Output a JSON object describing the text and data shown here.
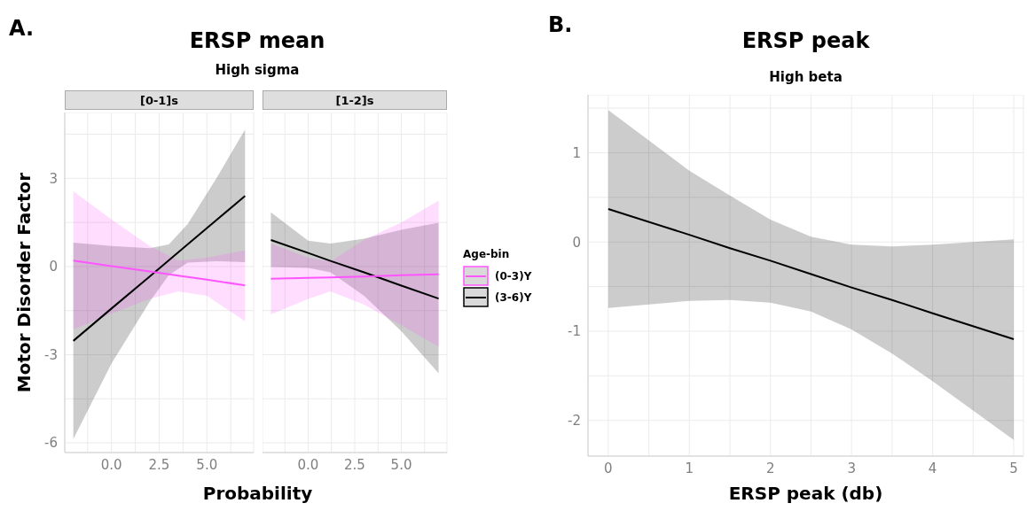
{
  "chart_data": [
    {
      "type": "line",
      "title": "[0-1]s",
      "legend": "right",
      "legend_title": "Age-bin",
      "annotations": [
        "A.",
        "ERSP mean",
        "High sigma"
      ],
      "xlabel": "Probability",
      "ylabel": "Motor Disorder Factor",
      "xlim": [
        -2.45,
        7.45
      ],
      "ylim": [
        -6.33,
        5.24
      ],
      "xticks": [
        {
          "value": -1.25,
          "label": null
        },
        {
          "value": 0,
          "label": "0.0"
        },
        {
          "value": 1.25,
          "label": null
        },
        {
          "value": 2.5,
          "label": "2.5"
        },
        {
          "value": 3.75,
          "label": null
        },
        {
          "value": 5,
          "label": "5.0"
        },
        {
          "value": 6.25,
          "label": null
        }
      ],
      "yticks": [
        -6,
        {
          "value": -4.5,
          "label": null
        },
        -3,
        {
          "value": -1.5,
          "label": null
        },
        0,
        {
          "value": 1.5,
          "label": null
        },
        3,
        {
          "value": 4.5,
          "label": null
        }
      ],
      "grid": true,
      "series": [
        {
          "name": "(3-6)Y",
          "color": "#000000",
          "x": [
            -2,
            0,
            2,
            3,
            4,
            5.5,
            7
          ],
          "values": [
            -2.53,
            -1.43,
            -0.34,
            0.21,
            0.76,
            1.58,
            2.4
          ],
          "lower": [
            -5.87,
            -3.3,
            -1.2,
            -0.3,
            0.13,
            0.18,
            0.15
          ],
          "upper": [
            0.81,
            0.7,
            0.62,
            0.75,
            1.45,
            3.0,
            4.66
          ]
        },
        {
          "name": "(0-3)Y",
          "color": "#ff55ff",
          "x": [
            -2,
            0,
            2,
            3.5,
            5,
            7
          ],
          "values": [
            0.2,
            0.01,
            -0.17,
            -0.31,
            -0.45,
            -0.64
          ],
          "lower": [
            -2.14,
            -1.6,
            -1.1,
            -0.85,
            -1.0,
            -1.86
          ],
          "upper": [
            2.56,
            1.6,
            0.7,
            0.2,
            0.3,
            0.55
          ]
        }
      ]
    },
    {
      "type": "line",
      "title": "[1-2]s",
      "xlim": [
        -2.45,
        7.45
      ],
      "ylim": [
        -6.33,
        5.24
      ],
      "tick_labels": "x",
      "xticks": [
        {
          "value": -1.25,
          "label": null
        },
        {
          "value": 0,
          "label": "0.0"
        },
        {
          "value": 1.25,
          "label": null
        },
        {
          "value": 2.5,
          "label": "2.5"
        },
        {
          "value": 3.75,
          "label": null
        },
        {
          "value": 5,
          "label": "5.0"
        },
        {
          "value": 6.25,
          "label": null
        }
      ],
      "yticks": [
        -6,
        {
          "value": -4.5,
          "label": null
        },
        -3,
        {
          "value": -1.5,
          "label": null
        },
        0,
        {
          "value": 1.5,
          "label": null
        },
        3,
        {
          "value": 4.5,
          "label": null
        }
      ],
      "grid": true,
      "series": [
        {
          "color": "#000000",
          "x": [
            -2,
            0,
            1.2,
            3,
            5,
            7
          ],
          "values": [
            0.9,
            0.46,
            0.19,
            -0.2,
            -0.65,
            -1.09
          ],
          "lower": [
            -0.02,
            -0.05,
            -0.2,
            -1.0,
            -2.2,
            -3.63
          ],
          "upper": [
            1.84,
            0.88,
            0.78,
            0.95,
            1.25,
            1.49
          ]
        },
        {
          "color": "#ff55ff",
          "x": [
            -2,
            0,
            1.2,
            3,
            5,
            7
          ],
          "values": [
            -0.42,
            -0.39,
            -0.37,
            -0.34,
            -0.3,
            -0.27
          ],
          "lower": [
            -1.63,
            -1.1,
            -0.85,
            -1.3,
            -2.0,
            -2.73
          ],
          "upper": [
            0.78,
            0.3,
            0.18,
            0.9,
            1.5,
            2.24
          ]
        }
      ]
    },
    {
      "type": "line",
      "title": "ERSP peak",
      "subtitle": "High beta",
      "annotations": [
        "B."
      ],
      "xlabel": "ERSP peak (db)",
      "xlim": [
        -0.25,
        5.12
      ],
      "ylim": [
        -2.4,
        1.65
      ],
      "xticks": [
        0,
        {
          "value": 0.5,
          "label": null
        },
        1,
        {
          "value": 1.5,
          "label": null
        },
        2,
        {
          "value": 2.5,
          "label": null
        },
        3,
        {
          "value": 3.5,
          "label": null
        },
        4,
        {
          "value": 4.5,
          "label": null
        },
        5
      ],
      "yticks": [
        -2,
        {
          "value": -1.5,
          "label": null
        },
        -1,
        {
          "value": -0.5,
          "label": null
        },
        0,
        {
          "value": 0.5,
          "label": null
        },
        1,
        {
          "value": 1.5,
          "label": null
        }
      ],
      "grid": true,
      "series": [
        {
          "color": "#000000",
          "x": [
            0,
            1,
            1.5,
            2,
            2.5,
            3,
            3.5,
            4,
            5
          ],
          "values": [
            0.37,
            0.08,
            -0.07,
            -0.21,
            -0.36,
            -0.51,
            -0.65,
            -0.8,
            -1.09
          ],
          "lower": [
            -0.74,
            -0.66,
            -0.65,
            -0.68,
            -0.78,
            -0.98,
            -1.25,
            -1.56,
            -2.22
          ],
          "upper": [
            1.48,
            0.8,
            0.52,
            0.25,
            0.06,
            -0.03,
            -0.05,
            -0.03,
            0.03
          ]
        }
      ]
    }
  ]
}
